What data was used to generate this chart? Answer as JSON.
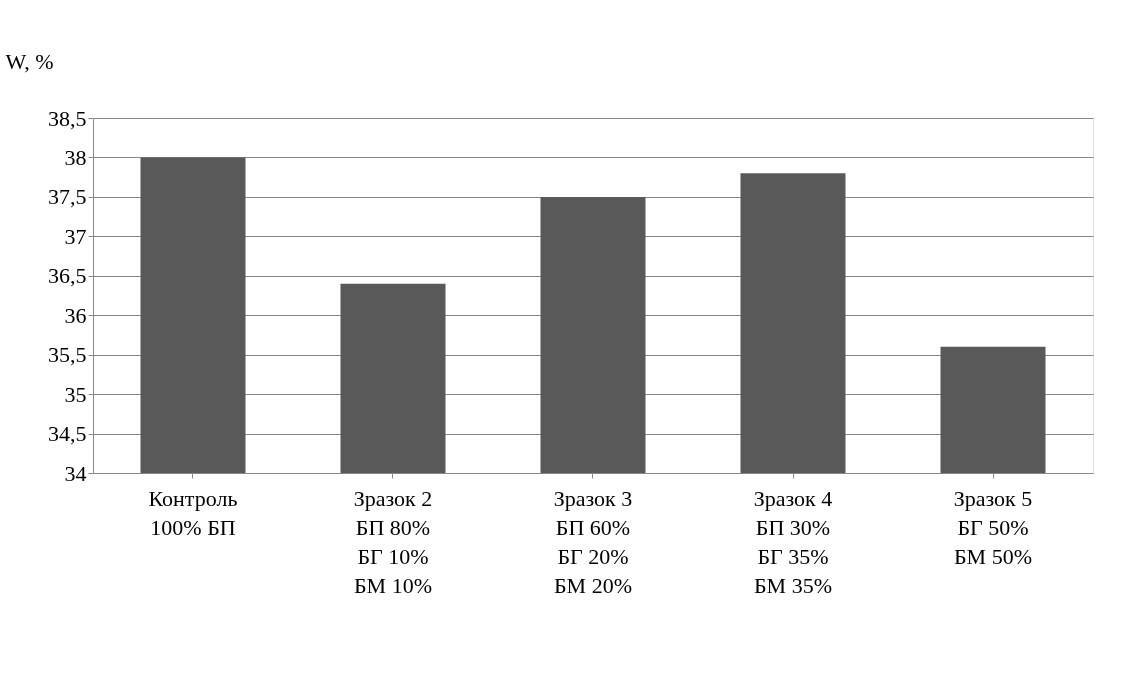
{
  "chart_data": {
    "type": "bar",
    "ylabel": "W, %",
    "categories": [
      "Контроль\n100% БП",
      "Зразок 2\nБП 80%\nБГ 10%\nБМ 10%",
      "Зразок 3\nБП 60%\nБГ 20%\nБМ 20%",
      "Зразок 4\nБП 30%\nБГ 35%\nБМ 35%",
      "Зразок 5\nБГ 50%\nБМ 50%"
    ],
    "values": [
      38,
      36.4,
      37.5,
      37.8,
      35.6
    ],
    "color": "#595959",
    "ylim": [
      34,
      38.5
    ],
    "yticks": [
      34,
      {
        "value": 34.5,
        "label": "34,5"
      },
      35,
      {
        "value": 35.5,
        "label": "35,5"
      },
      36,
      {
        "value": 36.5,
        "label": "36,5"
      },
      37,
      {
        "value": 37.5,
        "label": "37,5"
      },
      38,
      {
        "value": 38.5,
        "label": "38,5"
      }
    ],
    "grid": "y"
  }
}
